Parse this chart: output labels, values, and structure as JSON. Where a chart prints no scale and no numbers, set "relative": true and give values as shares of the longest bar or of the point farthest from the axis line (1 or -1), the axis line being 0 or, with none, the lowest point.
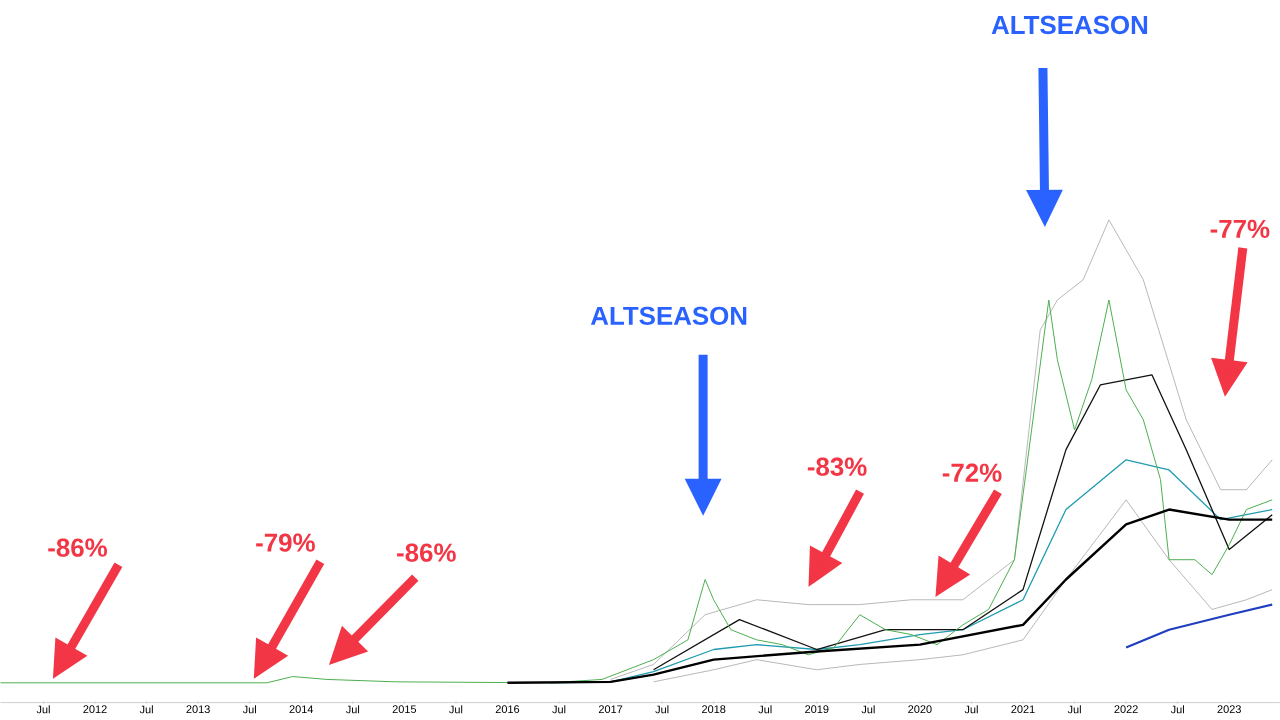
{
  "chart_data": {
    "type": "line",
    "relative": true,
    "xlim": [
      "2011-02",
      "2023-06-28"
    ],
    "xticks": [
      {
        "value": "2011-07",
        "label": "Jul"
      },
      {
        "value": "2012",
        "label": "2012"
      },
      {
        "value": "2012-07",
        "label": "Jul"
      },
      {
        "value": "2013",
        "label": "2013"
      },
      {
        "value": "2013-07",
        "label": "Jul"
      },
      {
        "value": "2014",
        "label": "2014"
      },
      {
        "value": "2014-07",
        "label": "Jul"
      },
      {
        "value": "2015",
        "label": "2015"
      },
      {
        "value": "2015-07",
        "label": "Jul"
      },
      {
        "value": "2016",
        "label": "2016"
      },
      {
        "value": "2016-07",
        "label": "Jul"
      },
      {
        "value": "2017",
        "label": "2017"
      },
      {
        "value": "2017-07",
        "label": "Jul"
      },
      {
        "value": "2018",
        "label": "2018"
      },
      {
        "value": "2018-07",
        "label": "Jul"
      },
      {
        "value": "2019",
        "label": "2019"
      },
      {
        "value": "2019-07",
        "label": "Jul"
      },
      {
        "value": "2020",
        "label": "2020"
      },
      {
        "value": "2020-07",
        "label": "Jul"
      },
      {
        "value": "2021",
        "label": "2021"
      },
      {
        "value": "2021-07",
        "label": "Jul"
      },
      {
        "value": "2022",
        "label": "2022"
      },
      {
        "value": "2022-07",
        "label": "Jul"
      },
      {
        "value": "2023",
        "label": "2023"
      }
    ],
    "annotations": [
      "-86%",
      "-79%",
      "-86%",
      "-83%",
      "-72%",
      "-77%",
      "ALTSEASON",
      "ALTSEASON"
    ],
    "series": [
      {
        "color": "#888888",
        "x": [
          "2017-01",
          "2017-06",
          "2017-12",
          "2018-06",
          "2018-12",
          "2019-06",
          "2019-12",
          "2020-06",
          "2020-12",
          "2021-03",
          "2021-05",
          "2021-08",
          "2021-11",
          "2022-03",
          "2022-08",
          "2022-12",
          "2023-03",
          "2023-06"
        ],
        "values": [
          0.048,
          0.079,
          0.182,
          0.213,
          0.203,
          0.203,
          0.213,
          0.213,
          0.296,
          0.772,
          0.834,
          0.876,
          1,
          0.876,
          0.586,
          0.441,
          0.441,
          0.503
        ]
      },
      {
        "color": "#888888",
        "x": [
          "2017-06",
          "2018-01",
          "2018-06",
          "2019-01",
          "2019-06",
          "2020-01",
          "2020-06",
          "2021-01",
          "2021-06",
          "2022-01",
          "2022-06",
          "2022-11",
          "2023-03",
          "2023-06"
        ],
        "values": [
          0.043,
          0.068,
          0.089,
          0.068,
          0.079,
          0.089,
          0.099,
          0.13,
          0.255,
          0.42,
          0.296,
          0.193,
          0.213,
          0.234
        ]
      },
      {
        "color": "#1e9bb0",
        "x": [
          "2016-06",
          "2017-01",
          "2017-06",
          "2018-01",
          "2018-06",
          "2019-01",
          "2019-06",
          "2020-01",
          "2020-06",
          "2021-01",
          "2021-06",
          "2022-01",
          "2022-06",
          "2022-12",
          "2023-06"
        ],
        "values": [
          0.041,
          0.043,
          0.064,
          0.11,
          0.12,
          0.11,
          0.12,
          0.141,
          0.151,
          0.213,
          0.4,
          0.503,
          0.482,
          0.379,
          0.4
        ]
      },
      {
        "color": "#111111",
        "x": [
          "2017-06",
          "2018-04",
          "2019-01",
          "2019-09",
          "2020-06",
          "2021-01",
          "2021-06",
          "2021-10",
          "2022-04",
          "2022-08",
          "2023-01",
          "2023-06"
        ],
        "values": [
          0.068,
          0.172,
          0.11,
          0.151,
          0.151,
          0.234,
          0.524,
          0.658,
          0.679,
          0.524,
          0.317,
          0.389
        ]
      },
      {
        "color": "#4caf50",
        "x": [
          "2011-02",
          "2013-09",
          "2013-12",
          "2014-04",
          "2014-12",
          "2016-06",
          "2016-12",
          "2017-06",
          "2017-10",
          "2017-12",
          "2018-01",
          "2018-03",
          "2018-06",
          "2018-09",
          "2018-12",
          "2019-03",
          "2019-06",
          "2019-09",
          "2019-12",
          "2020-03",
          "2020-06",
          "2020-09",
          "2020-12",
          "2021-02",
          "2021-04",
          "2021-05",
          "2021-07",
          "2021-09",
          "2021-11",
          "2022-01",
          "2022-03",
          "2022-05",
          "2022-06",
          "2022-09",
          "2022-11",
          "2023-01",
          "2023-03",
          "2023-06"
        ],
        "values": [
          0.041,
          0.041,
          0.054,
          0.048,
          0.043,
          0.041,
          0.048,
          0.089,
          0.13,
          0.255,
          0.213,
          0.151,
          0.13,
          0.12,
          0.099,
          0.114,
          0.182,
          0.151,
          0.141,
          0.12,
          0.161,
          0.193,
          0.296,
          0.565,
          0.834,
          0.71,
          0.565,
          0.669,
          0.834,
          0.648,
          0.586,
          0.462,
          0.296,
          0.296,
          0.265,
          0.327,
          0.4,
          0.42
        ]
      },
      {
        "color": "#000000",
        "x": [
          "2016-01",
          "2017-01",
          "2017-06",
          "2018-01",
          "2019-01",
          "2020-01",
          "2021-01",
          "2021-06",
          "2022-01",
          "2022-06",
          "2023-01",
          "2023-06"
        ],
        "values": [
          0.041,
          0.043,
          0.058,
          0.089,
          0.106,
          0.12,
          0.161,
          0.255,
          0.369,
          0.4,
          0.379,
          0.379
        ]
      },
      {
        "color": "#1f3fbf",
        "x": [
          "2022-01",
          "2022-06",
          "2023-01",
          "2023-06"
        ],
        "values": [
          0.114,
          0.151,
          0.182,
          0.203
        ]
      }
    ]
  }
}
